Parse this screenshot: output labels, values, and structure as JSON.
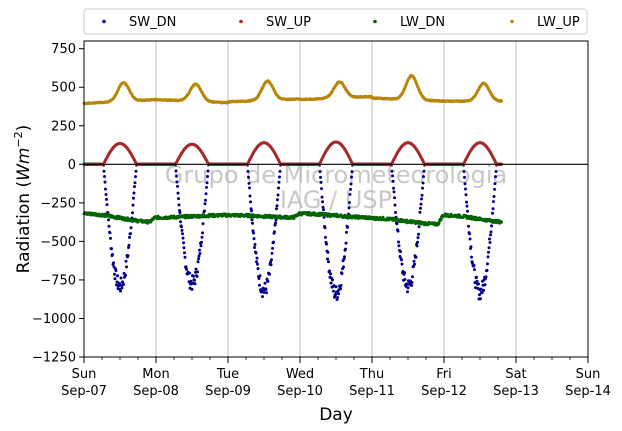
{
  "chart_data": {
    "type": "scatter",
    "xlabel": "Day",
    "ylabel_main": "Radiation (",
    "ylabel_unit_base": "Wm",
    "ylabel_unit_exp": "−2",
    "ylabel_close": ")",
    "ylim": [
      -1250,
      800
    ],
    "yticks": [
      750,
      500,
      250,
      0,
      -250,
      -500,
      -750,
      -1000,
      -1250
    ],
    "ytick_labels": [
      "750",
      "500",
      "250",
      "0",
      "−250",
      "−500",
      "−750",
      "−1000",
      "−1250"
    ],
    "xlim": [
      0,
      7
    ],
    "xticks": [
      {
        "x": 0,
        "day": "Sun",
        "date": "Sep-07"
      },
      {
        "x": 1,
        "day": "Mon",
        "date": "Sep-08"
      },
      {
        "x": 2,
        "day": "Tue",
        "date": "Sep-09"
      },
      {
        "x": 3,
        "day": "Wed",
        "date": "Sep-10"
      },
      {
        "x": 4,
        "day": "Thu",
        "date": "Sep-11"
      },
      {
        "x": 5,
        "day": "Fri",
        "date": "Sep-12"
      },
      {
        "x": 6,
        "day": "Sat",
        "date": "Sep-13"
      },
      {
        "x": 7,
        "day": "Sun",
        "date": "Sep-14"
      }
    ],
    "grid": "x",
    "zero_line": 0,
    "legend_placement": "top",
    "data_end_x": 5.8,
    "watermark": [
      "Grupo de Micrometeorologia",
      "IAG / USP"
    ],
    "series": [
      {
        "name": "SW_DN",
        "color": "#00008b",
        "daily_peak": [
          -840,
          -820,
          -870,
          -890,
          -840,
          -880
        ],
        "night_value": 0
      },
      {
        "name": "SW_UP",
        "color": "#a52a2a",
        "daily_peak": [
          135,
          130,
          140,
          145,
          140,
          140
        ],
        "night_value": 0
      },
      {
        "name": "LW_DN",
        "color": "#006400",
        "daily_values": [
          [
            -320,
            -375
          ],
          [
            -345,
            -330
          ],
          [
            -330,
            -345
          ],
          [
            -320,
            -345
          ],
          [
            -350,
            -390
          ],
          [
            -330,
            -380
          ]
        ]
      },
      {
        "name": "LW_UP",
        "color": "#b8860b",
        "daily_values": [
          [
            395,
            530,
            420
          ],
          [
            420,
            520,
            400
          ],
          [
            405,
            540,
            425
          ],
          [
            420,
            535,
            440
          ],
          [
            430,
            575,
            410
          ],
          [
            410,
            525,
            410
          ]
        ]
      }
    ]
  }
}
